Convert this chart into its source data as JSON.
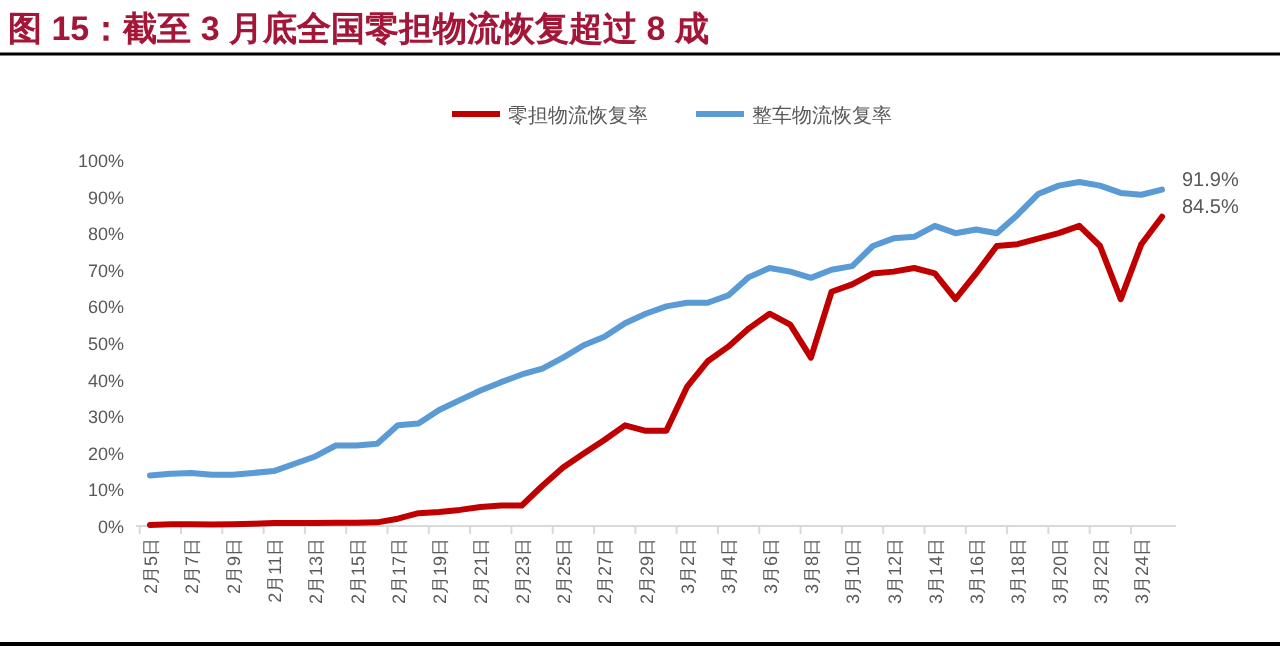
{
  "chart_data": {
    "type": "line",
    "title": "图 15：截至 3 月底全国零担物流恢复超过 8 成",
    "categories": [
      "2月5日",
      null,
      "2月7日",
      null,
      "2月9日",
      null,
      "2月11日",
      null,
      "2月13日",
      null,
      "2月15日",
      null,
      "2月17日",
      null,
      "2月19日",
      null,
      "2月21日",
      null,
      "2月23日",
      null,
      "2月25日",
      null,
      "2月27日",
      null,
      "2月29日",
      null,
      "3月2日",
      null,
      "3月4日",
      null,
      "3月6日",
      null,
      "3月8日",
      null,
      "3月10日",
      null,
      "3月12日",
      null,
      "3月14日",
      null,
      "3月16日",
      null,
      "3月18日",
      null,
      "3月20日",
      null,
      "3月22日",
      null,
      "3月24日",
      null
    ],
    "series": [
      {
        "name": "零担物流恢复率",
        "color": "#c00000",
        "values": [
          0.3,
          0.5,
          0.5,
          0.4,
          0.5,
          0.6,
          0.8,
          0.8,
          0.8,
          0.9,
          0.9,
          1.0,
          2.0,
          3.5,
          3.8,
          4.4,
          5.2,
          5.6,
          5.6,
          11,
          16,
          19.8,
          23.5,
          27.5,
          26,
          26,
          38,
          45,
          49,
          54,
          58,
          55,
          46,
          64,
          66,
          69,
          69.5,
          70.5,
          69,
          62,
          69,
          76.5,
          77,
          78.5,
          80,
          82,
          76.5,
          62,
          77,
          84.5
        ],
        "value_labels": [
          null,
          null,
          null,
          null,
          null,
          null,
          null,
          null,
          null,
          null,
          null,
          null,
          null,
          null,
          null,
          null,
          null,
          null,
          null,
          null,
          null,
          null,
          null,
          null,
          null,
          null,
          null,
          null,
          null,
          null,
          null,
          null,
          null,
          null,
          null,
          null,
          null,
          null,
          null,
          null,
          null,
          null,
          null,
          null,
          null,
          null,
          null,
          null,
          null,
          "84.5%"
        ]
      },
      {
        "name": "整车物流恢复率",
        "color": "#5b9bd5",
        "values": [
          13.8,
          14.3,
          14.5,
          14,
          14,
          14.5,
          15,
          17,
          19,
          22,
          22,
          22.5,
          27.5,
          28,
          31.7,
          34.4,
          37,
          39.3,
          41.4,
          43,
          46,
          49.4,
          51.7,
          55.4,
          58,
          60,
          61,
          61,
          63,
          68,
          70.5,
          69.5,
          67.8,
          70,
          71,
          76.5,
          78.6,
          79,
          82,
          80,
          81,
          80,
          85,
          90.7,
          93,
          94,
          93,
          91,
          90.5,
          91.9
        ],
        "value_labels": [
          null,
          null,
          null,
          null,
          null,
          null,
          null,
          null,
          null,
          null,
          null,
          null,
          null,
          null,
          null,
          null,
          null,
          null,
          null,
          null,
          null,
          null,
          null,
          null,
          null,
          null,
          null,
          null,
          null,
          null,
          null,
          null,
          null,
          null,
          null,
          null,
          null,
          null,
          null,
          null,
          null,
          null,
          null,
          null,
          null,
          null,
          null,
          null,
          null,
          "91.9%"
        ]
      }
    ],
    "ylim": [
      0,
      100
    ],
    "yticks": [
      {
        "value": 0,
        "label": "0%"
      },
      {
        "value": 10,
        "label": "10%"
      },
      {
        "value": 20,
        "label": "20%"
      },
      {
        "value": 30,
        "label": "30%"
      },
      {
        "value": 40,
        "label": "40%"
      },
      {
        "value": 50,
        "label": "50%"
      },
      {
        "value": 60,
        "label": "60%"
      },
      {
        "value": 70,
        "label": "70%"
      },
      {
        "value": 80,
        "label": "80%"
      },
      {
        "value": 90,
        "label": "90%"
      },
      {
        "value": 100,
        "label": "100%"
      }
    ],
    "legend": "top",
    "grid": false
  }
}
